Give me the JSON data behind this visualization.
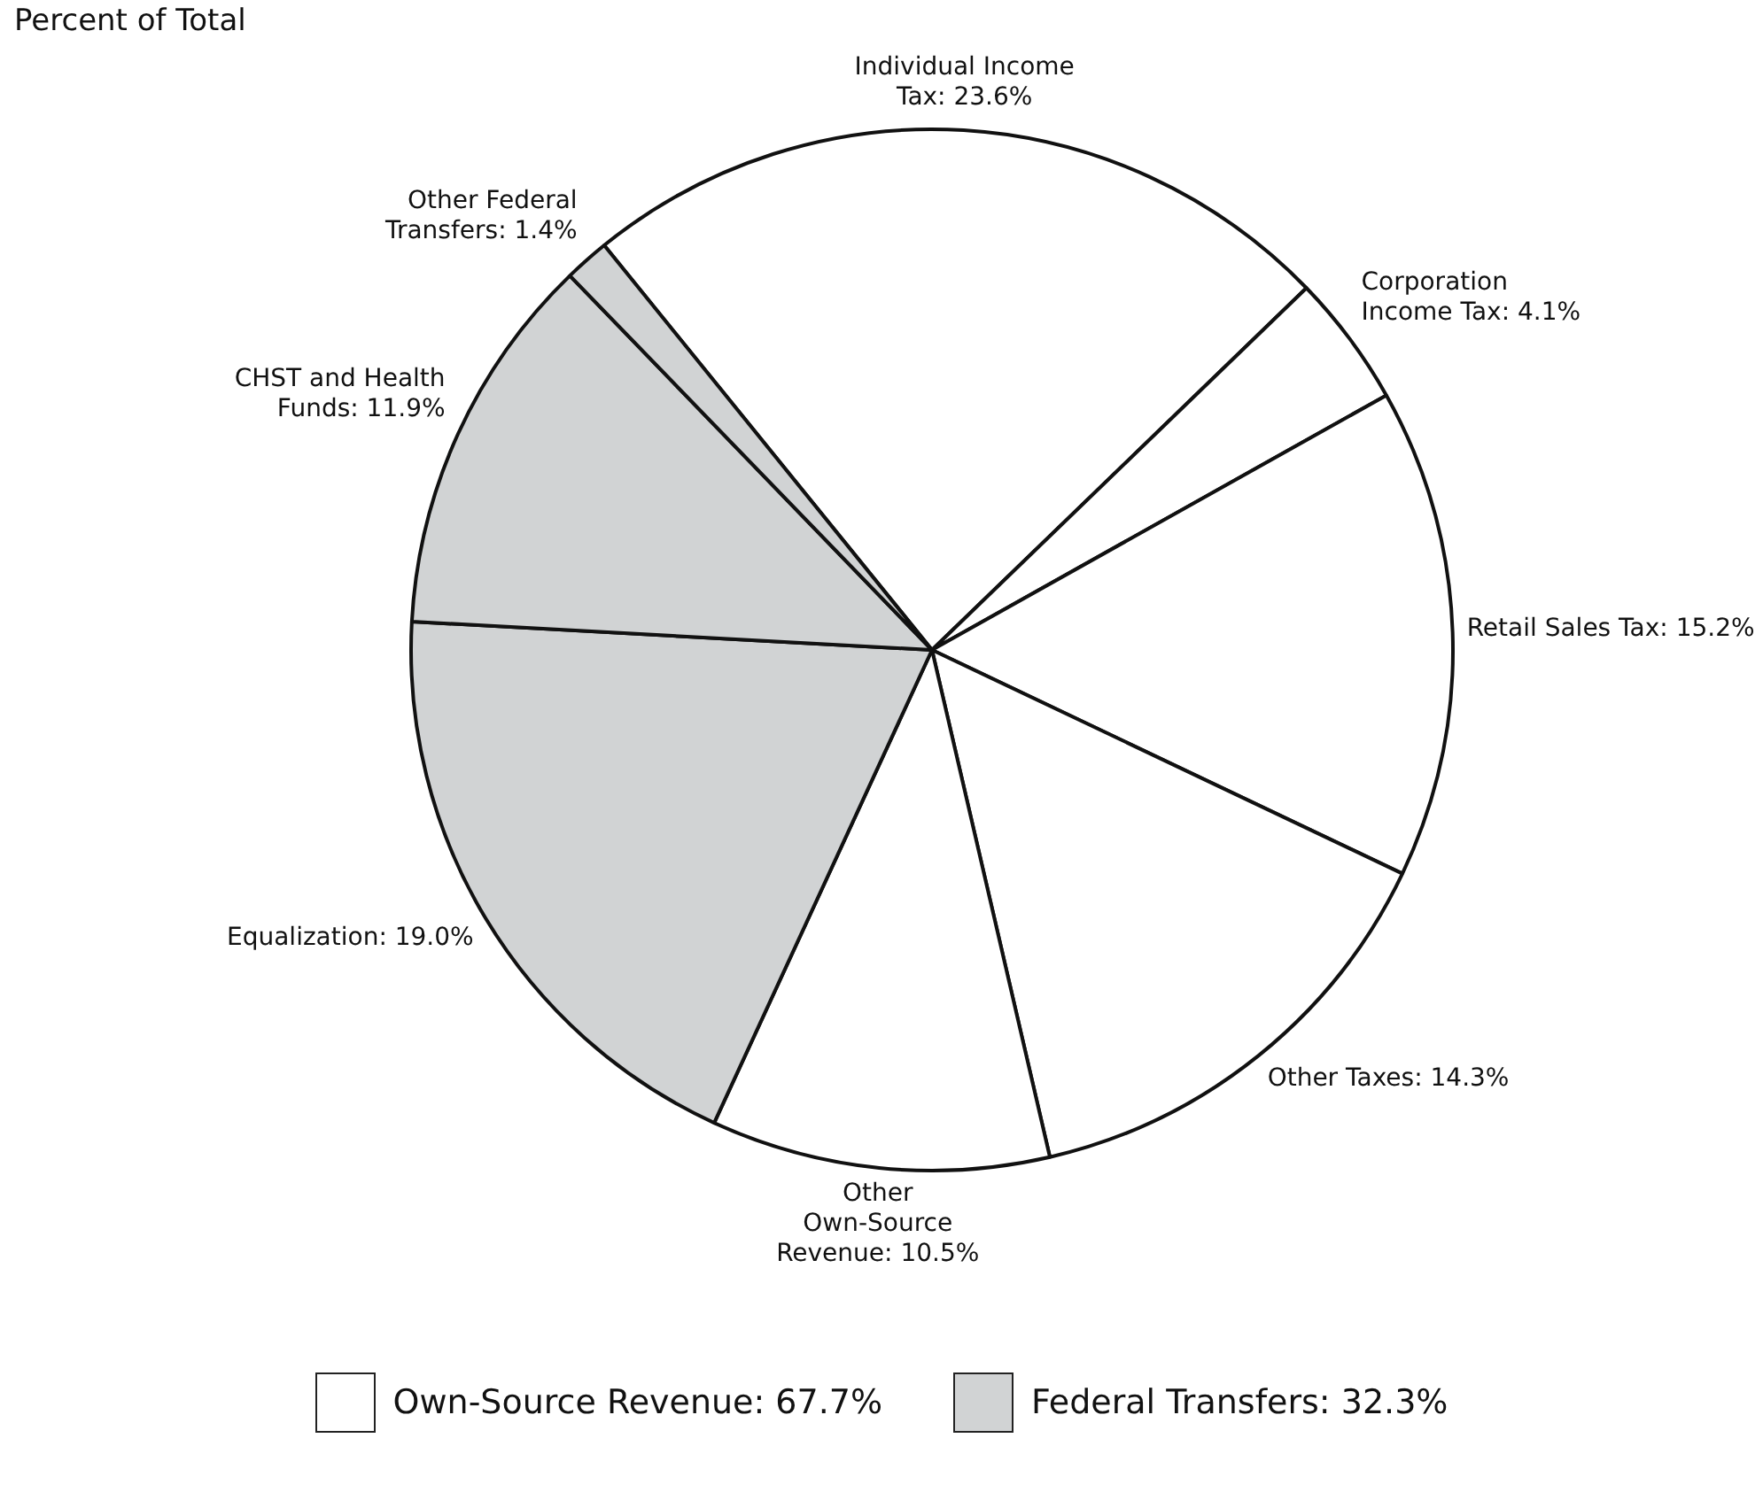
{
  "chart_data": {
    "type": "pie",
    "title": "Percent of Total",
    "categories": [
      "Individual Income Tax",
      "Corporation Income Tax",
      "Retail Sales Tax",
      "Other Taxes",
      "Other Own-Source Revenue",
      "Equalization",
      "CHST and Health Funds",
      "Other Federal Transfers"
    ],
    "values": [
      23.6,
      4.1,
      15.2,
      14.3,
      10.5,
      19.0,
      11.9,
      1.4
    ],
    "colors": [
      "#ffffff",
      "#ffffff",
      "#ffffff",
      "#ffffff",
      "#ffffff",
      "#d1d3d4",
      "#d1d3d4",
      "#d1d3d4"
    ],
    "value_labels": [
      "23.6%",
      "4.1%",
      "15.2%",
      "14.3%",
      "10.5%",
      "19.0%",
      "11.9%",
      "1.4%"
    ],
    "annotations": [
      "Own-Source Revenue: 67.7%",
      "Federal Transfers: 32.3%"
    ]
  }
}
